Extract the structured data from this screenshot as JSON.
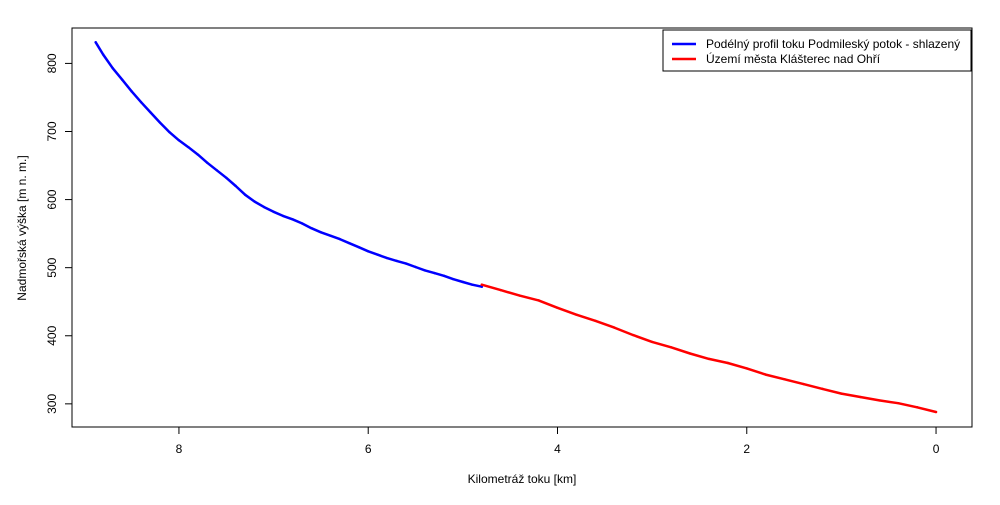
{
  "chart_data": {
    "type": "line",
    "xlabel": "Kilometráž toku [km]",
    "ylabel": "Nadmořská výška [m n. m.]",
    "xlim": [
      9.13,
      -0.38
    ],
    "ylim": [
      266,
      852
    ],
    "x_reversed": true,
    "x_ticks": [
      8,
      6,
      4,
      2,
      0
    ],
    "x_tick_labels": [
      "8",
      "6",
      "4",
      "2",
      "0"
    ],
    "y_ticks": [
      300,
      400,
      500,
      600,
      700,
      800
    ],
    "y_tick_labels": [
      "300",
      "400",
      "500",
      "600",
      "700",
      "800"
    ],
    "grid": false,
    "legend_position": "top-right",
    "series": [
      {
        "name": "Podélný profil toku Podmileský potok - shlazený",
        "color": "#0000ff",
        "x": [
          8.88,
          8.8,
          8.7,
          8.6,
          8.5,
          8.4,
          8.3,
          8.2,
          8.1,
          8.0,
          7.9,
          7.8,
          7.7,
          7.6,
          7.5,
          7.4,
          7.3,
          7.2,
          7.1,
          7.0,
          6.9,
          6.8,
          6.7,
          6.6,
          6.5,
          6.4,
          6.3,
          6.2,
          6.1,
          6.0,
          5.9,
          5.8,
          5.7,
          5.6,
          5.5,
          5.4,
          5.3,
          5.2,
          5.1,
          5.0,
          4.9,
          4.8
        ],
        "y": [
          831,
          813,
          793,
          776,
          759,
          743,
          728,
          713,
          699,
          687,
          677,
          666,
          654,
          643,
          632,
          620,
          607,
          597,
          589,
          582,
          576,
          571,
          565,
          558,
          552,
          547,
          542,
          536,
          530,
          524,
          519,
          514,
          510,
          506,
          501,
          496,
          492,
          488,
          483,
          479,
          475,
          472
        ]
      },
      {
        "name": "Území města Klášterec nad Ohří",
        "color": "#ff0000",
        "x": [
          4.8,
          4.6,
          4.4,
          4.2,
          4.0,
          3.8,
          3.6,
          3.4,
          3.2,
          3.0,
          2.8,
          2.6,
          2.4,
          2.2,
          2.0,
          1.8,
          1.6,
          1.4,
          1.2,
          1.0,
          0.8,
          0.6,
          0.4,
          0.2,
          0.0
        ],
        "y": [
          475,
          467,
          459,
          452,
          441,
          431,
          422,
          412,
          401,
          391,
          383,
          374,
          366,
          360,
          352,
          343,
          336,
          329,
          322,
          315,
          310,
          305,
          301,
          295,
          288
        ]
      }
    ]
  }
}
